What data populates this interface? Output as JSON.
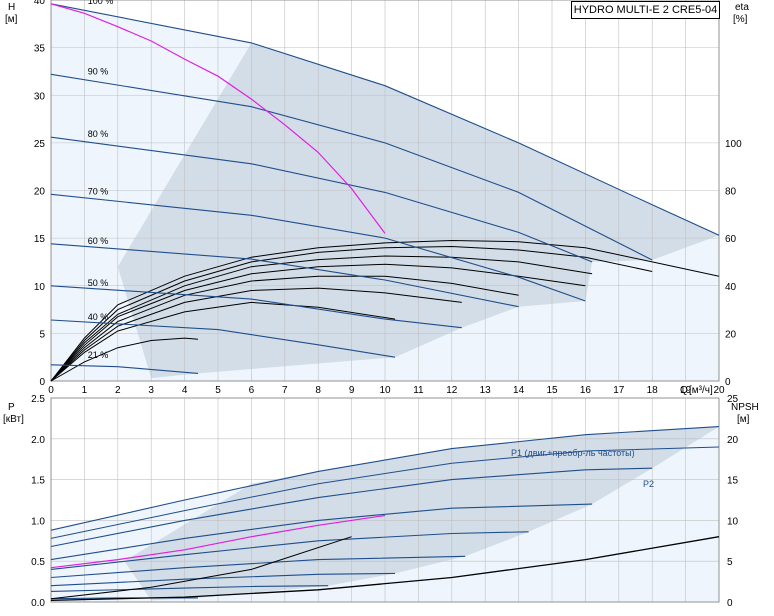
{
  "chart_data": [
    {
      "type": "line",
      "title": "HYDRO MULTI-E 2 CRE5-04",
      "ylabel": "H",
      "yunit": "[м]",
      "y2label": "eta",
      "y2unit": "[%]",
      "xlabel": "Q",
      "xunit": "[м³/ч]",
      "xlim": [
        0,
        20
      ],
      "ylim": [
        0,
        40
      ],
      "y2lim": [
        0,
        160
      ],
      "x_ticks": [
        0,
        1,
        2,
        3,
        4,
        5,
        6,
        7,
        8,
        9,
        10,
        11,
        12,
        13,
        14,
        15,
        16,
        17,
        18,
        19,
        20
      ],
      "y_ticks": [
        0,
        5,
        10,
        15,
        20,
        25,
        30,
        35,
        40
      ],
      "y2_ticks": [
        0,
        20,
        40,
        60,
        80,
        100
      ],
      "speed_labels": [
        "100 %",
        "90 %",
        "80 %",
        "70 %",
        "60 %",
        "50 %",
        "40 %",
        "21 %"
      ],
      "head_curves": [
        {
          "label": "100 %",
          "points": [
            [
              0,
              39.6
            ],
            [
              6,
              35.5
            ],
            [
              10,
              31
            ],
            [
              14,
              25
            ],
            [
              18,
              18.5
            ],
            [
              20,
              15.3
            ]
          ]
        },
        {
          "label": "90 %",
          "points": [
            [
              0,
              32.2
            ],
            [
              6,
              28.8
            ],
            [
              10,
              25
            ],
            [
              14,
              19.8
            ],
            [
              18,
              12.7
            ]
          ]
        },
        {
          "label": "80 %",
          "points": [
            [
              0,
              25.6
            ],
            [
              6,
              22.8
            ],
            [
              10,
              19.8
            ],
            [
              14,
              15.6
            ],
            [
              16.2,
              12.5
            ]
          ]
        },
        {
          "label": "70 %",
          "points": [
            [
              0,
              19.6
            ],
            [
              6,
              17.4
            ],
            [
              10,
              15
            ],
            [
              14,
              10.9
            ],
            [
              16,
              8.4
            ]
          ]
        },
        {
          "label": "60 %",
          "points": [
            [
              0,
              14.4
            ],
            [
              6,
              12.8
            ],
            [
              10,
              10.6
            ],
            [
              14,
              7.8
            ]
          ]
        },
        {
          "label": "50 %",
          "points": [
            [
              0,
              10
            ],
            [
              6,
              8.6
            ],
            [
              10,
              6.5
            ],
            [
              12.3,
              5.6
            ]
          ]
        },
        {
          "label": "40 %",
          "points": [
            [
              0,
              6.4
            ],
            [
              5,
              5.4
            ],
            [
              8,
              3.8
            ],
            [
              10.3,
              2.5
            ]
          ]
        },
        {
          "label": "21 %",
          "points": [
            [
              0,
              1.7
            ],
            [
              2,
              1.5
            ],
            [
              4.4,
              0.8
            ]
          ]
        }
      ],
      "efficiency_curves": [
        {
          "label": "100 %",
          "points": [
            [
              0,
              0
            ],
            [
              1,
              18
            ],
            [
              2,
              32
            ],
            [
              4,
              44
            ],
            [
              6,
              52
            ],
            [
              8,
              56
            ],
            [
              10,
              58
            ],
            [
              12,
              59
            ],
            [
              14,
              58.5
            ],
            [
              16,
              56
            ],
            [
              18,
              50
            ],
            [
              20,
              44
            ]
          ]
        },
        {
          "label": "90 %",
          "points": [
            [
              0,
              0
            ],
            [
              1,
              17
            ],
            [
              2,
              30
            ],
            [
              4,
              42
            ],
            [
              6,
              50
            ],
            [
              8,
              54
            ],
            [
              10,
              56
            ],
            [
              12,
              56.5
            ],
            [
              14,
              55
            ],
            [
              16,
              52
            ],
            [
              18,
              46
            ]
          ]
        },
        {
          "label": "80 %",
          "points": [
            [
              0,
              0
            ],
            [
              1,
              16
            ],
            [
              2,
              28
            ],
            [
              4,
              40
            ],
            [
              6,
              48
            ],
            [
              8,
              51
            ],
            [
              10,
              52.5
            ],
            [
              12,
              52
            ],
            [
              14,
              50
            ],
            [
              16.2,
              45
            ]
          ]
        },
        {
          "label": "70 %",
          "points": [
            [
              0,
              0
            ],
            [
              1,
              15
            ],
            [
              2,
              27
            ],
            [
              4,
              38
            ],
            [
              6,
              45
            ],
            [
              8,
              48
            ],
            [
              10,
              49
            ],
            [
              12,
              47.5
            ],
            [
              14,
              44
            ],
            [
              16,
              40
            ]
          ]
        },
        {
          "label": "60 %",
          "points": [
            [
              0,
              0
            ],
            [
              1,
              14
            ],
            [
              2,
              25
            ],
            [
              4,
              36
            ],
            [
              6,
              42
            ],
            [
              8,
              44
            ],
            [
              10,
              44
            ],
            [
              12,
              41
            ],
            [
              14,
              36
            ]
          ]
        },
        {
          "label": "50 %",
          "points": [
            [
              0,
              0
            ],
            [
              1,
              13
            ],
            [
              2,
              23
            ],
            [
              4,
              33
            ],
            [
              6,
              38
            ],
            [
              8,
              39
            ],
            [
              10,
              37
            ],
            [
              12.3,
              33
            ]
          ]
        },
        {
          "label": "40 %",
          "points": [
            [
              0,
              0
            ],
            [
              1,
              12
            ],
            [
              2,
              21
            ],
            [
              4,
              29
            ],
            [
              6,
              33
            ],
            [
              8,
              31
            ],
            [
              10.3,
              26
            ]
          ]
        },
        {
          "label": "21 %",
          "points": [
            [
              0,
              0
            ],
            [
              1,
              8
            ],
            [
              2,
              14
            ],
            [
              3,
              17
            ],
            [
              4,
              18
            ],
            [
              4.4,
              17.5
            ]
          ]
        }
      ],
      "system_curve": {
        "points": [
          [
            0,
            39.6
          ],
          [
            1,
            38.6
          ],
          [
            2,
            37.2
          ],
          [
            3,
            35.7
          ],
          [
            4,
            33.8
          ],
          [
            5,
            32
          ],
          [
            6,
            29.6
          ],
          [
            7,
            26.9
          ],
          [
            8,
            24
          ],
          [
            9,
            20.2
          ],
          [
            10,
            15.5
          ]
        ]
      }
    },
    {
      "type": "line",
      "ylabel": "P",
      "yunit": "[кВт]",
      "y2label": "NPSH",
      "y2unit": "[м]",
      "xlim": [
        0,
        20
      ],
      "ylim": [
        0,
        2.5
      ],
      "y2lim": [
        0,
        25
      ],
      "y_ticks": [
        "0.0",
        "0.5",
        "1.0",
        "1.5",
        "2.0",
        "2.5"
      ],
      "y2_ticks": [
        0,
        5,
        10,
        15,
        20,
        25
      ],
      "series_labels": [
        "P1 (двиг.+преобр-ль частоты)",
        "P2"
      ],
      "p1_curves": [
        {
          "points": [
            [
              0,
              0.88
            ],
            [
              4,
              1.25
            ],
            [
              8,
              1.6
            ],
            [
              12,
              1.88
            ],
            [
              16,
              2.05
            ],
            [
              20,
              2.15
            ]
          ]
        },
        {
          "points": [
            [
              0,
              0.68
            ],
            [
              4,
              1.0
            ],
            [
              8,
              1.28
            ],
            [
              12,
              1.5
            ],
            [
              16,
              1.62
            ],
            [
              18,
              1.64
            ]
          ]
        },
        {
          "points": [
            [
              0,
              0.52
            ],
            [
              4,
              0.78
            ],
            [
              8,
              1.0
            ],
            [
              12,
              1.15
            ],
            [
              16.2,
              1.2
            ]
          ]
        },
        {
          "points": [
            [
              0,
              0.4
            ],
            [
              4,
              0.58
            ],
            [
              8,
              0.75
            ],
            [
              12,
              0.84
            ],
            [
              14.3,
              0.86
            ]
          ]
        },
        {
          "points": [
            [
              0,
              0.3
            ],
            [
              4,
              0.42
            ],
            [
              8,
              0.52
            ],
            [
              12.4,
              0.56
            ]
          ]
        },
        {
          "points": [
            [
              0,
              0.2
            ],
            [
              4,
              0.28
            ],
            [
              8,
              0.34
            ],
            [
              10.3,
              0.35
            ]
          ]
        },
        {
          "points": [
            [
              0,
              0.13
            ],
            [
              4,
              0.17
            ],
            [
              6,
              0.19
            ],
            [
              8.3,
              0.2
            ]
          ]
        },
        {
          "points": [
            [
              0,
              0.04
            ],
            [
              2,
              0.05
            ],
            [
              4.4,
              0.05
            ]
          ]
        }
      ],
      "p2_curve": {
        "points": [
          [
            0,
            0.78
          ],
          [
            4,
            1.12
          ],
          [
            8,
            1.45
          ],
          [
            12,
            1.7
          ],
          [
            16,
            1.85
          ],
          [
            20,
            1.9
          ]
        ]
      },
      "system_power": {
        "points": [
          [
            0,
            0.42
          ],
          [
            2,
            0.52
          ],
          [
            4,
            0.64
          ],
          [
            6,
            0.8
          ],
          [
            8,
            0.94
          ],
          [
            10,
            1.06
          ]
        ]
      },
      "npsh_curve": {
        "points": [
          [
            0,
            0.02
          ],
          [
            4,
            0.06
          ],
          [
            8,
            0.15
          ],
          [
            12,
            0.3
          ],
          [
            16,
            0.52
          ],
          [
            20,
            0.8
          ]
        ]
      },
      "npsh_small": {
        "points": [
          [
            0,
            0.04
          ],
          [
            3,
            0.18
          ],
          [
            6,
            0.4
          ],
          [
            9,
            0.8
          ]
        ]
      }
    }
  ]
}
